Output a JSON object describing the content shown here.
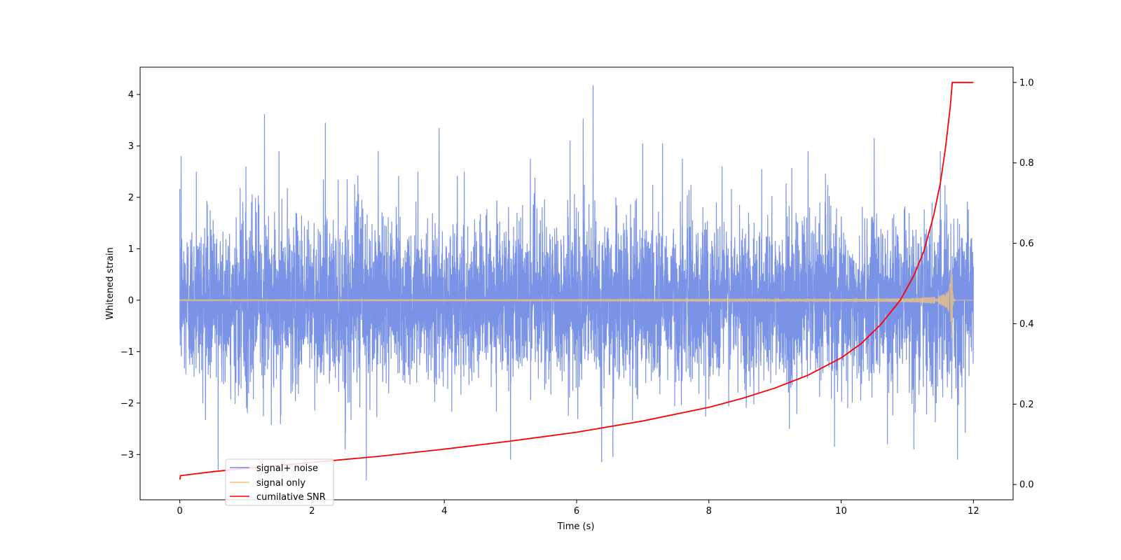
{
  "chart_data": {
    "type": "line",
    "title": "",
    "xlabel": "Time (s)",
    "ylabel": "Whitened strain",
    "y2label": "",
    "xlim": [
      -0.6,
      12.6
    ],
    "ylim": [
      -3.88,
      4.53
    ],
    "y2lim": [
      -0.038,
      1.038
    ],
    "x_ticks": [
      0,
      2,
      4,
      6,
      8,
      10,
      12
    ],
    "x_tick_labels": [
      "0",
      "2",
      "4",
      "6",
      "8",
      "10",
      "12"
    ],
    "y_ticks": [
      -3,
      -2,
      -1,
      0,
      1,
      2,
      3,
      4
    ],
    "y_tick_labels": [
      "−3",
      "−2",
      "−1",
      "0",
      "1",
      "2",
      "3",
      "4"
    ],
    "y2_ticks": [
      0.0,
      0.2,
      0.4,
      0.6,
      0.8,
      1.0
    ],
    "y2_tick_labels": [
      "0.0",
      "0.2",
      "0.4",
      "0.6",
      "0.8",
      "1.0"
    ],
    "grid": false,
    "legend_position": "lower-left",
    "series": [
      {
        "name": "signal+ noise",
        "color": "#6b87e3",
        "axis": "left",
        "description_stats": {
          "x_start": 0,
          "x_end": 12,
          "typical_range": [
            -2.0,
            2.0
          ],
          "max": 4.18,
          "min": -3.5
        },
        "peaks": [
          {
            "x": 0.02,
            "y": 2.8
          },
          {
            "x": 0.25,
            "y": 2.5
          },
          {
            "x": 0.58,
            "y": -3.3
          },
          {
            "x": 1.0,
            "y": 2.6
          },
          {
            "x": 1.28,
            "y": 3.62
          },
          {
            "x": 1.5,
            "y": 2.9
          },
          {
            "x": 2.2,
            "y": 3.45
          },
          {
            "x": 2.5,
            "y": -2.9
          },
          {
            "x": 2.82,
            "y": -3.5
          },
          {
            "x": 3.0,
            "y": 2.9
          },
          {
            "x": 3.6,
            "y": 2.5
          },
          {
            "x": 3.92,
            "y": 3.35
          },
          {
            "x": 4.3,
            "y": 2.5
          },
          {
            "x": 5.0,
            "y": -3.1
          },
          {
            "x": 5.3,
            "y": 2.75
          },
          {
            "x": 5.9,
            "y": 3.1
          },
          {
            "x": 6.1,
            "y": 3.53
          },
          {
            "x": 6.25,
            "y": 4.18
          },
          {
            "x": 6.38,
            "y": -3.15
          },
          {
            "x": 6.55,
            "y": -3.05
          },
          {
            "x": 7.0,
            "y": 3.05
          },
          {
            "x": 7.3,
            "y": 3.05
          },
          {
            "x": 7.6,
            "y": 2.75
          },
          {
            "x": 8.2,
            "y": 2.6
          },
          {
            "x": 8.8,
            "y": 2.55
          },
          {
            "x": 9.5,
            "y": 2.9
          },
          {
            "x": 9.9,
            "y": -2.85
          },
          {
            "x": 10.5,
            "y": 3.15
          },
          {
            "x": 10.7,
            "y": -2.8
          },
          {
            "x": 11.1,
            "y": -2.9
          },
          {
            "x": 11.5,
            "y": 2.9
          },
          {
            "x": 11.76,
            "y": -3.1
          }
        ]
      },
      {
        "name": "signal only",
        "color": "#f4c47a",
        "axis": "left",
        "chirp": {
          "x_start": 0,
          "x_merge": 11.68,
          "x_end": 12,
          "amplitude_start": 0.01,
          "amplitude_peak_upper": 0.55,
          "amplitude_peak_lower": -0.75
        }
      },
      {
        "name": "cumilative SNR",
        "color": "#ff0000",
        "axis": "right",
        "points": [
          [
            0.0,
            0.012
          ],
          [
            0.01,
            0.022
          ],
          [
            0.5,
            0.032
          ],
          [
            1.0,
            0.04
          ],
          [
            2.0,
            0.055
          ],
          [
            3.0,
            0.07
          ],
          [
            4.0,
            0.088
          ],
          [
            5.0,
            0.108
          ],
          [
            6.0,
            0.13
          ],
          [
            7.0,
            0.158
          ],
          [
            8.0,
            0.192
          ],
          [
            8.5,
            0.214
          ],
          [
            9.0,
            0.24
          ],
          [
            9.5,
            0.272
          ],
          [
            10.0,
            0.315
          ],
          [
            10.3,
            0.35
          ],
          [
            10.6,
            0.398
          ],
          [
            10.9,
            0.46
          ],
          [
            11.1,
            0.52
          ],
          [
            11.25,
            0.58
          ],
          [
            11.4,
            0.67
          ],
          [
            11.5,
            0.75
          ],
          [
            11.58,
            0.84
          ],
          [
            11.65,
            0.94
          ],
          [
            11.68,
            1.0
          ],
          [
            12.0,
            1.0
          ]
        ]
      }
    ]
  }
}
